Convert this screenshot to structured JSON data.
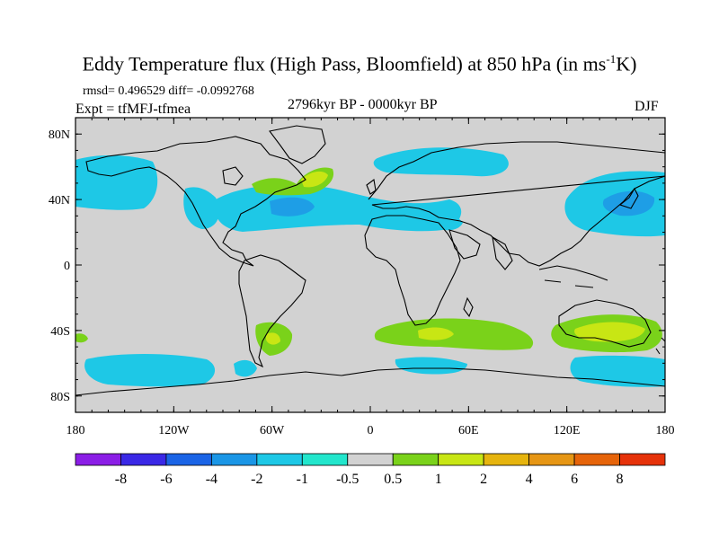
{
  "title": {
    "main": "Eddy Temperature flux (High Pass, Bloomfield) at 850 hPa (in ms",
    "sup": "-1",
    "tail": "K)"
  },
  "stats": "rmsd= 0.496529 diff= -0.0992768",
  "experiment": "Expt = tfMFJ-tfmea",
  "period": "2796kyr BP - 0000kyr BP",
  "season": "DJF",
  "axes": {
    "x_ticks": [
      {
        "lon": -180,
        "label": "180"
      },
      {
        "lon": -120,
        "label": "120W"
      },
      {
        "lon": -60,
        "label": "60W"
      },
      {
        "lon": 0,
        "label": "0"
      },
      {
        "lon": 60,
        "label": "60E"
      },
      {
        "lon": 120,
        "label": "120E"
      },
      {
        "lon": 180,
        "label": "180"
      }
    ],
    "y_ticks": [
      {
        "lat": 80,
        "label": "80N"
      },
      {
        "lat": 40,
        "label": "40N"
      },
      {
        "lat": 0,
        "label": "0"
      },
      {
        "lat": -40,
        "label": "40S"
      },
      {
        "lat": -80,
        "label": "80S"
      }
    ],
    "lon_range": [
      -180,
      180
    ],
    "lat_range": [
      -90,
      90
    ]
  },
  "colorbar": {
    "colors": [
      "#8b1ee6",
      "#3a28e6",
      "#1a64e6",
      "#1a96e6",
      "#1ec8e6",
      "#22e6cc",
      "#d2d2d2",
      "#7ad21a",
      "#c8e614",
      "#e6b40e",
      "#e69614",
      "#e6640a",
      "#e6320a"
    ],
    "labels": [
      "-8",
      "-6",
      "-4",
      "-2",
      "-1",
      "-0.5",
      "0.5",
      "1",
      "2",
      "4",
      "6",
      "8"
    ]
  },
  "colors": {
    "background": "#d2d2d2",
    "coast": "#000000"
  },
  "chart_data": {
    "type": "heatmap",
    "title": "Eddy Temperature flux (High Pass, Bloomfield) at 850 hPa (in ms-1K)",
    "x_range": [
      -180,
      180
    ],
    "y_range": [
      -90,
      90
    ],
    "levels": [
      -8,
      -6,
      -4,
      -2,
      -1,
      -0.5,
      0.5,
      1,
      2,
      4,
      6,
      8
    ],
    "regions": [
      {
        "name": "n-pacific-east",
        "lon": -160,
        "lat": 52,
        "level": -1
      },
      {
        "name": "n-atlantic",
        "lon": -45,
        "lat": 42,
        "level": -1
      },
      {
        "name": "n-atlantic-core",
        "lon": -48,
        "lat": 42,
        "level": -2
      },
      {
        "name": "labrador-positive",
        "lon": -52,
        "lat": 52,
        "level": 1
      },
      {
        "name": "labrador-positive-core",
        "lon": -48,
        "lat": 52,
        "level": 2
      },
      {
        "name": "nw-pacific",
        "lon": 150,
        "lat": 44,
        "level": -2
      },
      {
        "name": "southern-ocean-atlantic",
        "lon": 25,
        "lat": -42,
        "level": 1
      },
      {
        "name": "australia",
        "lon": 140,
        "lat": -40,
        "level": 2
      }
    ]
  }
}
